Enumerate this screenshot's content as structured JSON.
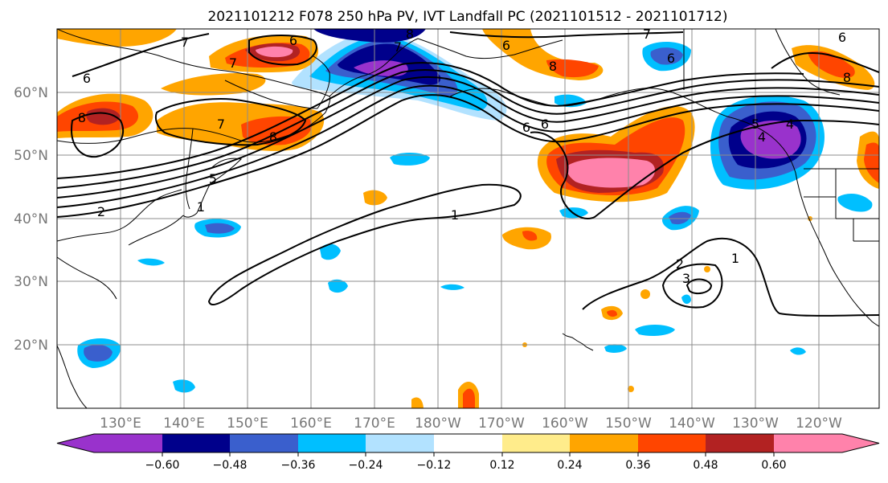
{
  "title": "2021101212 F078 250 hPa PV, IVT Landfall PC (2021101512 - 2021101712)",
  "lat_labels": [
    "60°N",
    "50°N",
    "40°N",
    "30°N",
    "20°N"
  ],
  "lon_labels": [
    "130°E",
    "140°E",
    "150°E",
    "160°E",
    "170°E",
    "180°W",
    "170°W",
    "160°W",
    "150°W",
    "140°W",
    "130°W",
    "120°W"
  ],
  "colorbar": {
    "ticks": [
      "−0.60",
      "−0.48",
      "−0.36",
      "−0.24",
      "−0.12",
      "0.12",
      "0.24",
      "0.36",
      "0.48",
      "0.60"
    ],
    "colors": [
      "#9932cc",
      "#00008b",
      "#3a5fcd",
      "#00bfff",
      "#b2e2ff",
      "#ffffff",
      "#ffec8b",
      "#ffa500",
      "#ff4500",
      "#b22222",
      "#ff82ab"
    ]
  },
  "contour_labels": [
    "6",
    "7",
    "6",
    "8",
    "6",
    "6",
    "7",
    "7",
    "8",
    "7",
    "8",
    "6",
    "6",
    "8",
    "5",
    "5",
    "2",
    "1",
    "1",
    "2",
    "3",
    "1",
    "4",
    "4",
    "8",
    "6",
    "7"
  ]
}
